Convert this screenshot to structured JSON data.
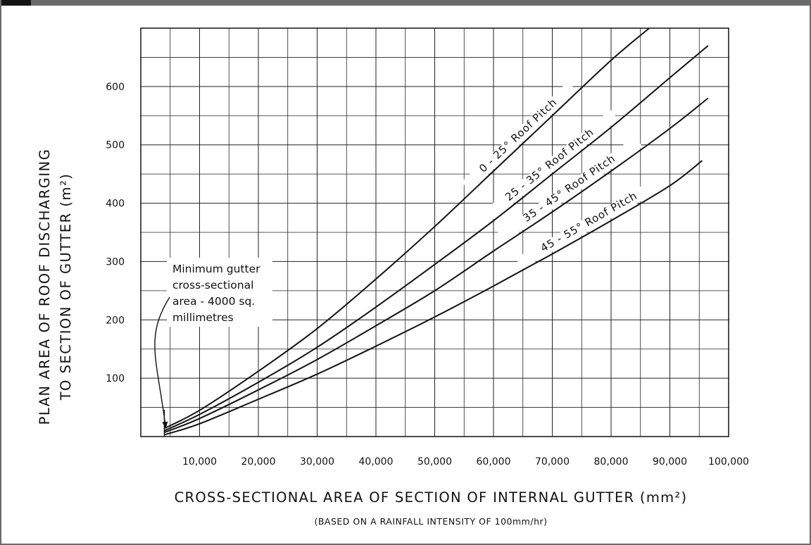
{
  "chart_data": {
    "type": "line",
    "title": "",
    "xlabel": "CROSS-SECTIONAL AREA OF SECTION OF INTERNAL GUTTER (mm²)",
    "xlabel_note": "(BASED ON A RAINFALL INTENSITY OF 100mm/hr)",
    "ylabel_line1": "PLAN AREA OF ROOF DISCHARGING",
    "ylabel_line2": "TO SECTION OF GUTTER (m²)",
    "xlim": [
      0,
      100000
    ],
    "ylim": [
      0,
      700
    ],
    "x_ticks": [
      10000,
      20000,
      30000,
      40000,
      50000,
      60000,
      70000,
      80000,
      90000,
      100000
    ],
    "x_tick_labels": [
      "10,000",
      "20,000",
      "30,000",
      "40,000",
      "50,000",
      "60,000",
      "70,000",
      "80,000",
      "90,000",
      "100,000"
    ],
    "y_ticks": [
      100,
      200,
      300,
      400,
      500,
      600
    ],
    "y_tick_labels": [
      "100",
      "200",
      "300",
      "400",
      "500",
      "600"
    ],
    "grid": true,
    "series": [
      {
        "name": "0 - 25° Roof Pitch",
        "x": [
          4000,
          10000,
          20000,
          30000,
          40000,
          50000,
          60000,
          70000,
          80000,
          86500
        ],
        "y": [
          14,
          45,
          112,
          185,
          270,
          360,
          455,
          550,
          645,
          700
        ]
      },
      {
        "name": "25 - 35° Roof Pitch",
        "x": [
          4000,
          10000,
          20000,
          30000,
          40000,
          50000,
          60000,
          70000,
          80000,
          90000,
          96500
        ],
        "y": [
          10,
          38,
          93,
          153,
          222,
          295,
          370,
          450,
          530,
          615,
          670
        ]
      },
      {
        "name": "35 - 45° Roof Pitch",
        "x": [
          4000,
          10000,
          20000,
          30000,
          40000,
          50000,
          60000,
          70000,
          80000,
          90000,
          96500
        ],
        "y": [
          7,
          31,
          80,
          132,
          190,
          250,
          318,
          385,
          455,
          528,
          580
        ]
      },
      {
        "name": "45 - 55° Roof Pitch",
        "x": [
          4000,
          10000,
          20000,
          30000,
          40000,
          50000,
          60000,
          70000,
          80000,
          90000,
          95500
        ],
        "y": [
          3,
          22,
          64,
          107,
          155,
          205,
          258,
          313,
          370,
          430,
          473
        ]
      }
    ],
    "annotation": {
      "lines": [
        "Minimum gutter",
        "cross-sectional",
        "area - 4000 sq.",
        "millimetres"
      ],
      "points_to_x": 4000
    }
  }
}
